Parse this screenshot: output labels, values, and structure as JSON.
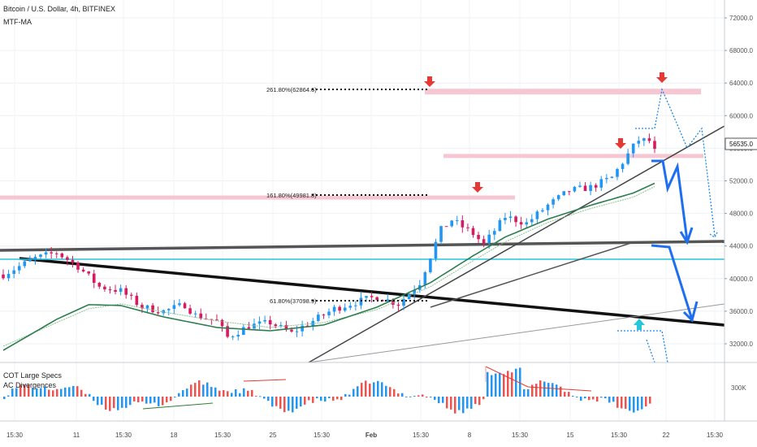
{
  "header": {
    "symbol_title": "Bitcoin / U.S. Dollar, 4h, BITFINEX",
    "indicator": "MTF-MA"
  },
  "lower_panel": {
    "label_1": "COT Large Specs",
    "label_2": "AC Divergences",
    "axis_label": "300K"
  },
  "price_tag": "56535.0",
  "chart_data": {
    "type": "line",
    "title": "Bitcoin / U.S. Dollar, 4h, BITFINEX",
    "xlabel": "",
    "ylabel": "",
    "ylim": [
      30000,
      74000
    ],
    "y_ticks": [
      32000,
      36000,
      40000,
      44000,
      48000,
      52000,
      56000,
      60000,
      64000,
      68000,
      72000
    ],
    "y_tick_labels": [
      "32000.0",
      "36000.0",
      "40000.0",
      "44000.0",
      "48000.0",
      "52000.0",
      "56000.0",
      "60000.0",
      "64000.0",
      "68000.0",
      "72000.0"
    ],
    "x_tick_labels": [
      "15:30",
      "11",
      "15:30",
      "18",
      "15:30",
      "25",
      "15:30",
      "Feb",
      "15:30",
      "8",
      "15:30",
      "15",
      "15:30",
      "22",
      "15:30"
    ],
    "current_price": 56535,
    "fib_levels": [
      {
        "label": "261.80%(62864.6)",
        "value": 62864.6
      },
      {
        "label": "161.80%(49981.8)",
        "value": 49981.8
      },
      {
        "label": "61.80%(37098.9)",
        "value": 37098.9
      }
    ],
    "price_path": [
      [
        0,
        40500
      ],
      [
        6,
        42500
      ],
      [
        10,
        43200
      ],
      [
        14,
        41500
      ],
      [
        18,
        39000
      ],
      [
        22,
        38500
      ],
      [
        26,
        36500
      ],
      [
        30,
        36000
      ],
      [
        34,
        36800
      ],
      [
        36,
        35500
      ],
      [
        40,
        34800
      ],
      [
        42,
        32800
      ],
      [
        44,
        33500
      ],
      [
        46,
        34200
      ],
      [
        50,
        34600
      ],
      [
        54,
        33300
      ],
      [
        56,
        34100
      ],
      [
        58,
        34800
      ],
      [
        62,
        36300
      ],
      [
        66,
        37100
      ],
      [
        70,
        37800
      ],
      [
        74,
        36900
      ],
      [
        78,
        39500
      ],
      [
        82,
        46000
      ],
      [
        84,
        47200
      ],
      [
        88,
        45500
      ],
      [
        90,
        44200
      ],
      [
        94,
        47600
      ],
      [
        98,
        46800
      ],
      [
        102,
        49000
      ],
      [
        106,
        50800
      ],
      [
        110,
        51200
      ],
      [
        114,
        52400
      ],
      [
        118,
        56200
      ],
      [
        119,
        57000
      ],
      [
        121,
        56900
      ],
      [
        122,
        55600
      ]
    ],
    "ma_fast": [
      [
        0,
        31200
      ],
      [
        10,
        35000
      ],
      [
        16,
        36800
      ],
      [
        22,
        36700
      ],
      [
        30,
        35300
      ],
      [
        40,
        34000
      ],
      [
        50,
        33600
      ],
      [
        60,
        34300
      ],
      [
        70,
        36500
      ],
      [
        80,
        39500
      ],
      [
        88,
        42800
      ],
      [
        94,
        45100
      ],
      [
        102,
        47300
      ],
      [
        110,
        49000
      ],
      [
        118,
        50500
      ],
      [
        122,
        51700
      ]
    ],
    "ma_slow": [
      [
        0,
        31700
      ],
      [
        10,
        34600
      ],
      [
        16,
        36300
      ],
      [
        22,
        36900
      ],
      [
        30,
        35900
      ],
      [
        40,
        34800
      ],
      [
        50,
        34000
      ],
      [
        60,
        34600
      ],
      [
        70,
        36200
      ],
      [
        80,
        39000
      ],
      [
        88,
        42200
      ],
      [
        94,
        44500
      ],
      [
        102,
        46900
      ],
      [
        110,
        48600
      ],
      [
        118,
        50000
      ],
      [
        122,
        51300
      ]
    ],
    "series": [
      {
        "values": []
      }
    ]
  }
}
